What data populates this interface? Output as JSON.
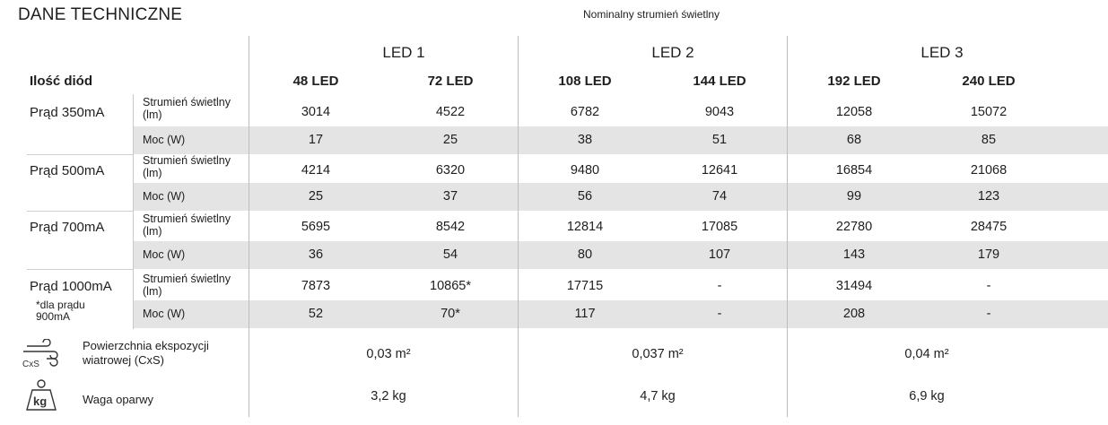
{
  "title": "DANE TECHNICZNE",
  "subtitle": "Nominalny strumień świetlny",
  "groups": [
    "LED 1",
    "LED 2",
    "LED 3"
  ],
  "diode_label": "Ilość diód",
  "columns": [
    "48 LED",
    "72 LED",
    "108 LED",
    "144 LED",
    "192 LED",
    "240 LED"
  ],
  "currents": [
    {
      "label": "Prąd 350mA"
    },
    {
      "label": "Prąd 500mA"
    },
    {
      "label": "Prąd 700mA"
    },
    {
      "label": "Prąd 1000mA",
      "note": "*dla prądu 900mA"
    }
  ],
  "sub_labels": {
    "flux": "Strumień świetlny (lm)",
    "power": "Moc (W)"
  },
  "rows": [
    [
      "3014",
      "4522",
      "6782",
      "9043",
      "12058",
      "15072"
    ],
    [
      "17",
      "25",
      "38",
      "51",
      "68",
      "85"
    ],
    [
      "4214",
      "6320",
      "9480",
      "12641",
      "16854",
      "21068"
    ],
    [
      "25",
      "37",
      "56",
      "74",
      "99",
      "123"
    ],
    [
      "5695",
      "8542",
      "12814",
      "17085",
      "22780",
      "28475"
    ],
    [
      "36",
      "54",
      "80",
      "107",
      "143",
      "179"
    ],
    [
      "7873",
      "10865*",
      "17715",
      "-",
      "31494",
      "-"
    ],
    [
      "52",
      "70*",
      "117",
      "-",
      "208",
      "-"
    ]
  ],
  "wind": {
    "label": "Powierzchnia ekspozycji wiatrowej (CxS)",
    "icon": "wind-cxs-icon",
    "icon_text": "CxS",
    "values": [
      "0,03 m²",
      "0,037 m²",
      "0,04 m²"
    ]
  },
  "weight": {
    "label": "Waga oparwy",
    "icon": "kg-weight-icon",
    "icon_text": "kg",
    "values": [
      "3,2 kg",
      "4,7 kg",
      "6,9 kg"
    ]
  }
}
